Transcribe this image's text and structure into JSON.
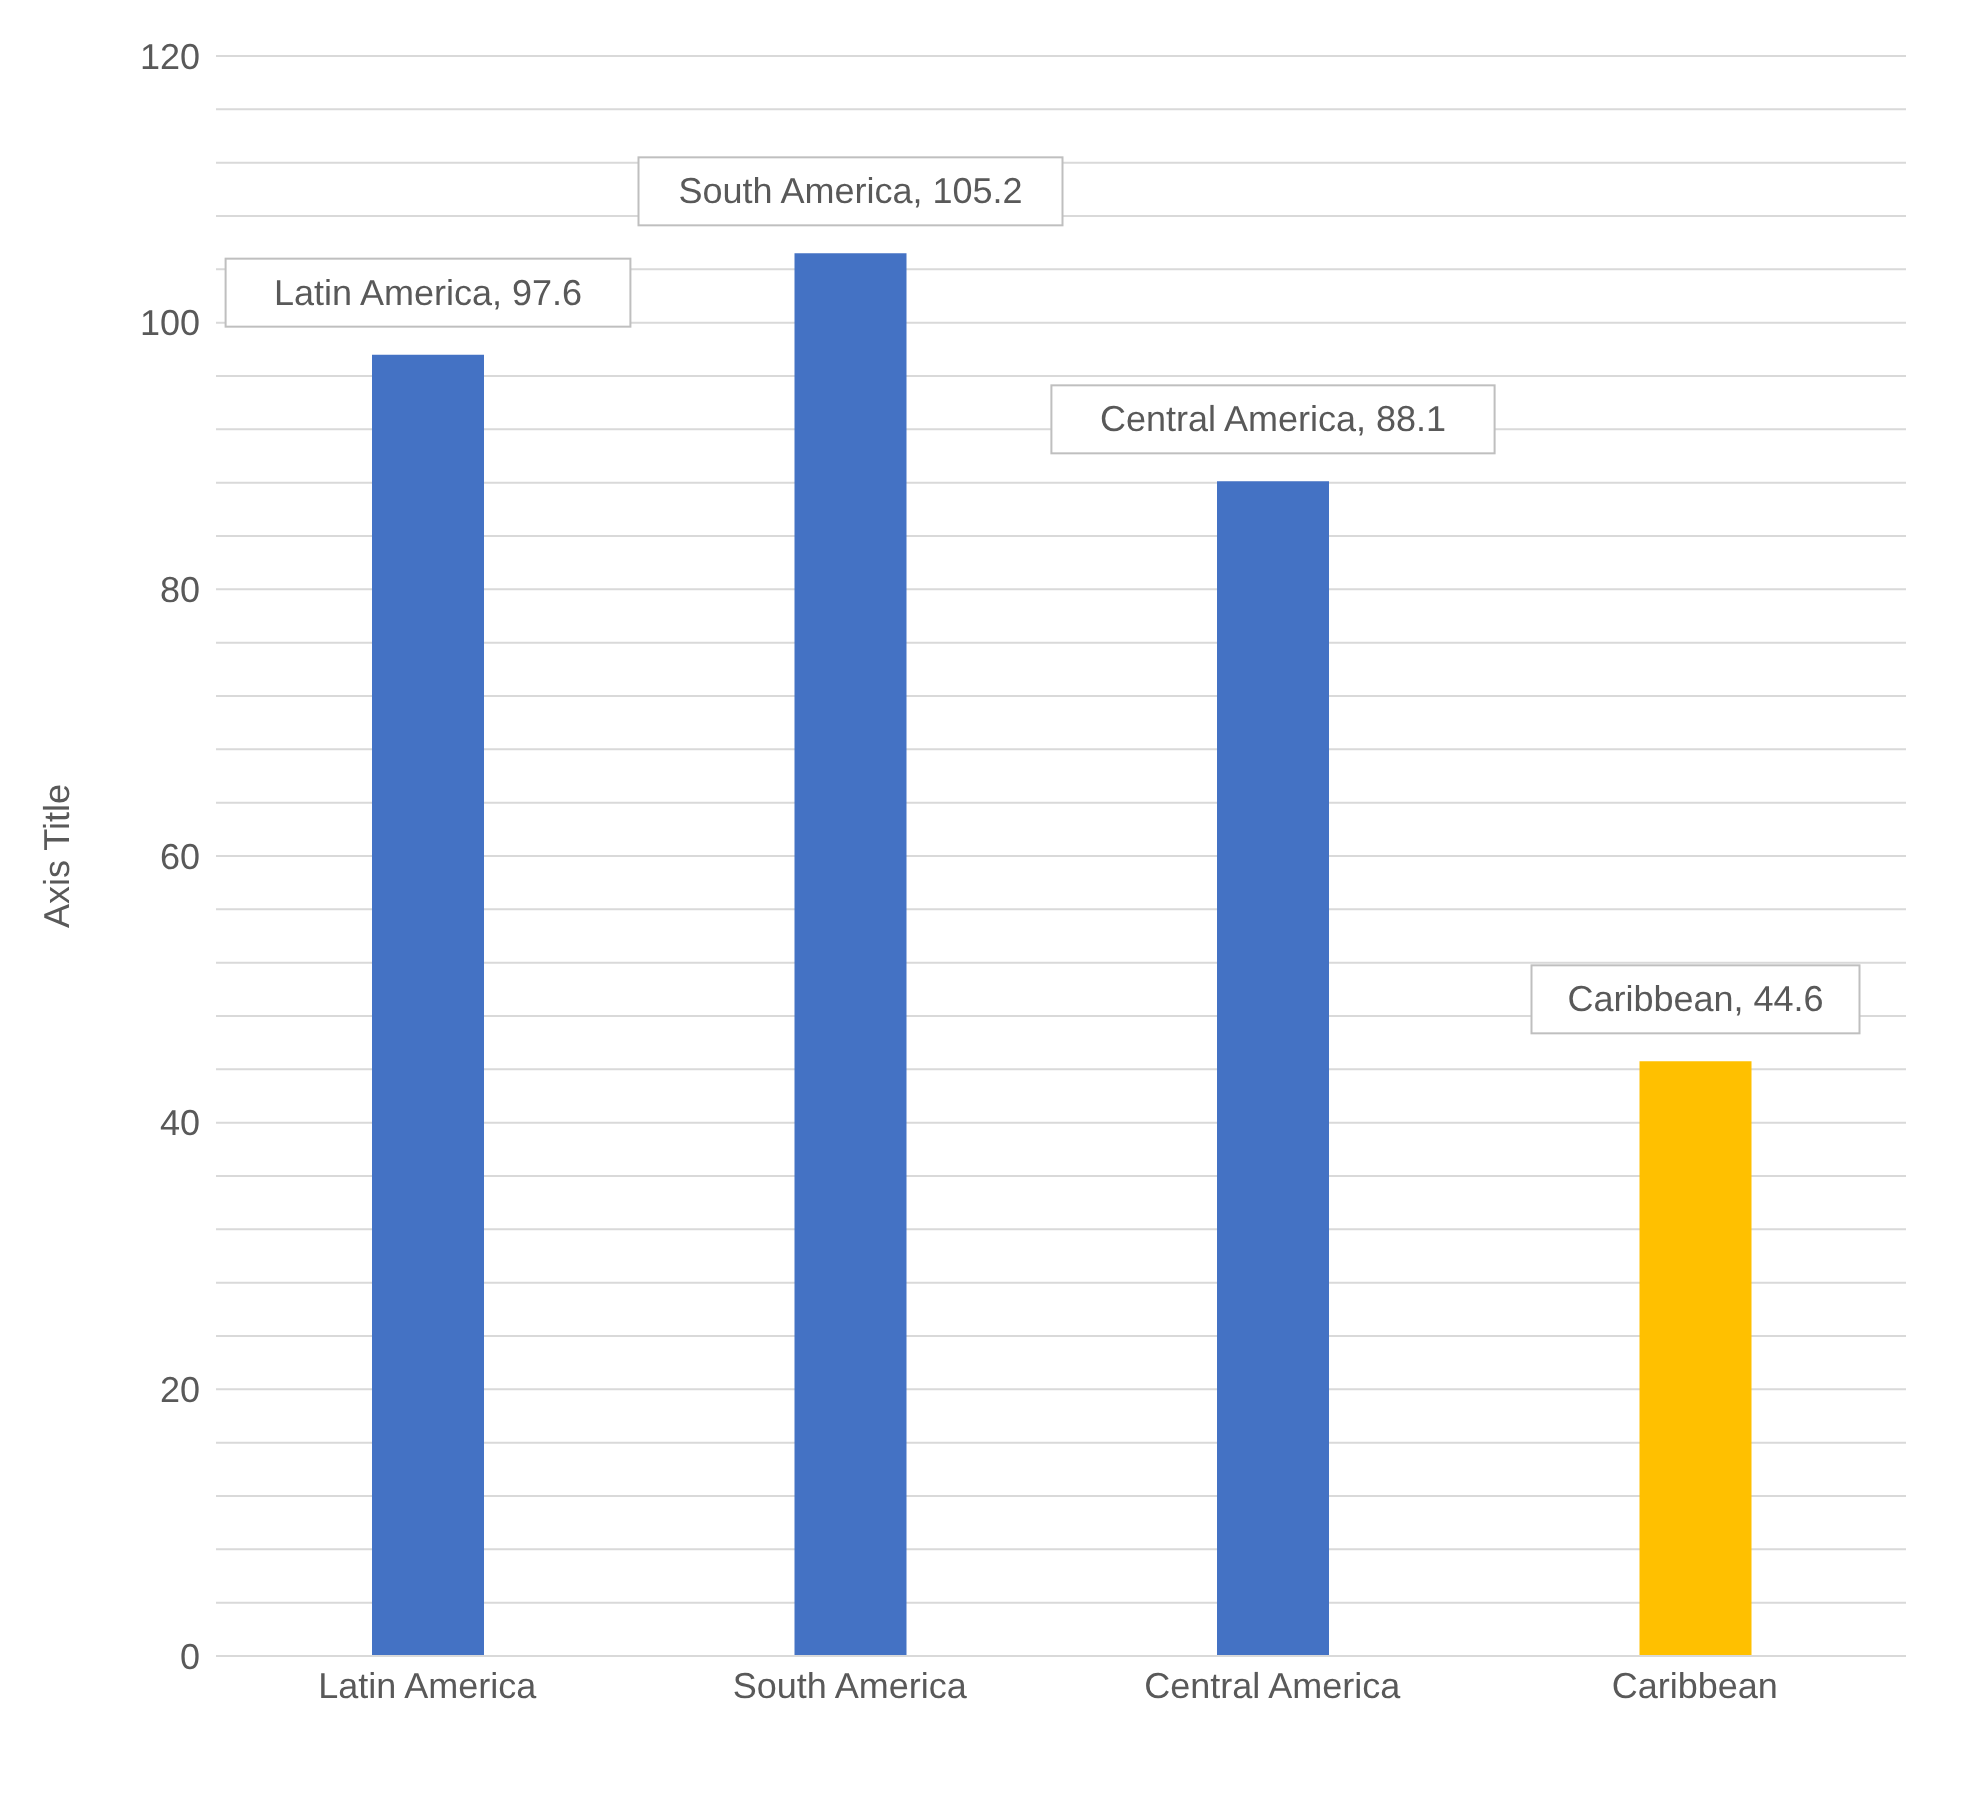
{
  "chart_data": {
    "type": "bar",
    "ylabel": "Axis Title",
    "categories": [
      "Latin America",
      "South America",
      "Central America",
      "Caribbean"
    ],
    "values": [
      97.6,
      105.2,
      88.1,
      44.6
    ],
    "colors": [
      "#4472c4",
      "#4472c4",
      "#4472c4",
      "#ffc000"
    ],
    "value_labels": [
      "Latin America, 97.6",
      "South America, 105.2",
      "Central America, 88.1",
      "Caribbean, 44.6"
    ],
    "ylim": [
      0,
      120
    ],
    "yticks": [
      0,
      {
        "value": 4,
        "label": null
      },
      {
        "value": 8,
        "label": null
      },
      {
        "value": 12,
        "label": null
      },
      {
        "value": 16,
        "label": null
      },
      20,
      {
        "value": 24,
        "label": null
      },
      {
        "value": 28,
        "label": null
      },
      {
        "value": 32,
        "label": null
      },
      {
        "value": 36,
        "label": null
      },
      40,
      {
        "value": 44,
        "label": null
      },
      {
        "value": 48,
        "label": null
      },
      {
        "value": 52,
        "label": null
      },
      {
        "value": 56,
        "label": null
      },
      60,
      {
        "value": 64,
        "label": null
      },
      {
        "value": 68,
        "label": null
      },
      {
        "value": 72,
        "label": null
      },
      {
        "value": 76,
        "label": null
      },
      80,
      {
        "value": 84,
        "label": null
      },
      {
        "value": 88,
        "label": null
      },
      {
        "value": 92,
        "label": null
      },
      {
        "value": 96,
        "label": null
      },
      100,
      {
        "value": 104,
        "label": null
      },
      {
        "value": 108,
        "label": null
      },
      {
        "value": 112,
        "label": null
      },
      {
        "value": 116,
        "label": null
      },
      120
    ],
    "grid": "y"
  }
}
